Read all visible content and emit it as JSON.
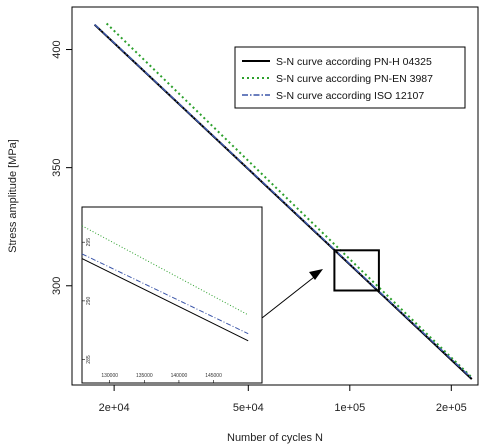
{
  "chart_data": {
    "type": "line",
    "xlabel": "Number of cycles N",
    "ylabel": "Stress amplitude [MPa]",
    "x_scale": "log",
    "xlim": [
      15000,
      240000
    ],
    "ylim": [
      258,
      418
    ],
    "x_ticks": [
      {
        "value": 20000,
        "label": "2e+04"
      },
      {
        "value": 50000,
        "label": "5e+04"
      },
      {
        "value": 100000,
        "label": "1e+05"
      },
      {
        "value": 200000,
        "label": "2e+05"
      }
    ],
    "y_ticks": [
      {
        "value": 400,
        "label": "400"
      },
      {
        "value": 350,
        "label": "350"
      },
      {
        "value": 300,
        "label": "300"
      }
    ],
    "grid": false,
    "legend_position": "top-right",
    "series": [
      {
        "name": "S-N curve according PN-H 04325",
        "color": "#000000",
        "dash": "solid",
        "x": [
          17500,
          230000
        ],
        "y": [
          410.5,
          260.5
        ]
      },
      {
        "name": "S-N curve according PN-EN 3987",
        "color": "#2ca02c",
        "dash": "dotted",
        "x": [
          19000,
          230000
        ],
        "y": [
          411.0,
          261.2
        ]
      },
      {
        "name": "S-N curve according ISO 12107",
        "color": "#3a55a8",
        "dash": "dashdot",
        "x": [
          17500,
          230000
        ],
        "y": [
          410.6,
          260.8
        ]
      }
    ],
    "zoom_box": {
      "x": [
        90000,
        122000
      ],
      "y": [
        298,
        315
      ]
    },
    "inset": {
      "xlim": [
        126000,
        152000
      ],
      "ylim": [
        283,
        298
      ],
      "x_ticks": [
        {
          "value": 130000,
          "label": "130000"
        },
        {
          "value": 135000,
          "label": "135000"
        },
        {
          "value": 140000,
          "label": "140000"
        },
        {
          "value": 145000,
          "label": "145000"
        }
      ],
      "y_ticks": [
        {
          "value": 285,
          "label": "285"
        },
        {
          "value": 290,
          "label": "290"
        },
        {
          "value": 295,
          "label": "295"
        }
      ],
      "series": [
        {
          "color": "#000000",
          "dash": "solid",
          "x": [
            126000,
            150000
          ],
          "y": [
            293.6,
            286.6
          ]
        },
        {
          "color": "#2ca02c",
          "dash": "dotted",
          "x": [
            126000,
            150000
          ],
          "y": [
            296.4,
            288.8
          ]
        },
        {
          "color": "#3a55a8",
          "dash": "dashdot",
          "x": [
            126000,
            150000
          ],
          "y": [
            294.0,
            287.2
          ]
        }
      ]
    }
  }
}
